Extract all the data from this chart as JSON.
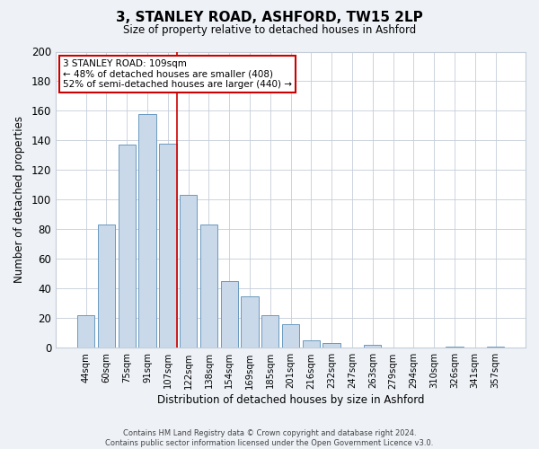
{
  "title": "3, STANLEY ROAD, ASHFORD, TW15 2LP",
  "subtitle": "Size of property relative to detached houses in Ashford",
  "xlabel": "Distribution of detached houses by size in Ashford",
  "ylabel": "Number of detached properties",
  "bar_labels": [
    "44sqm",
    "60sqm",
    "75sqm",
    "91sqm",
    "107sqm",
    "122sqm",
    "138sqm",
    "154sqm",
    "169sqm",
    "185sqm",
    "201sqm",
    "216sqm",
    "232sqm",
    "247sqm",
    "263sqm",
    "279sqm",
    "294sqm",
    "310sqm",
    "326sqm",
    "341sqm",
    "357sqm"
  ],
  "bar_values": [
    22,
    83,
    137,
    158,
    138,
    103,
    83,
    45,
    35,
    22,
    16,
    5,
    3,
    0,
    2,
    0,
    0,
    0,
    1,
    0,
    1
  ],
  "bar_color": "#c9d9ea",
  "bar_edge_color": "#6a9abf",
  "vline_x_index": 4,
  "vline_color": "#cc0000",
  "ylim": [
    0,
    200
  ],
  "yticks": [
    0,
    20,
    40,
    60,
    80,
    100,
    120,
    140,
    160,
    180,
    200
  ],
  "annotation_title": "3 STANLEY ROAD: 109sqm",
  "annotation_line1": "← 48% of detached houses are smaller (408)",
  "annotation_line2": "52% of semi-detached houses are larger (440) →",
  "annotation_box_edge": "#cc0000",
  "footer_line1": "Contains HM Land Registry data © Crown copyright and database right 2024.",
  "footer_line2": "Contains public sector information licensed under the Open Government Licence v3.0.",
  "bg_color": "#eef2f7",
  "plot_bg_color": "#ffffff",
  "grid_color": "#c5cdd8"
}
